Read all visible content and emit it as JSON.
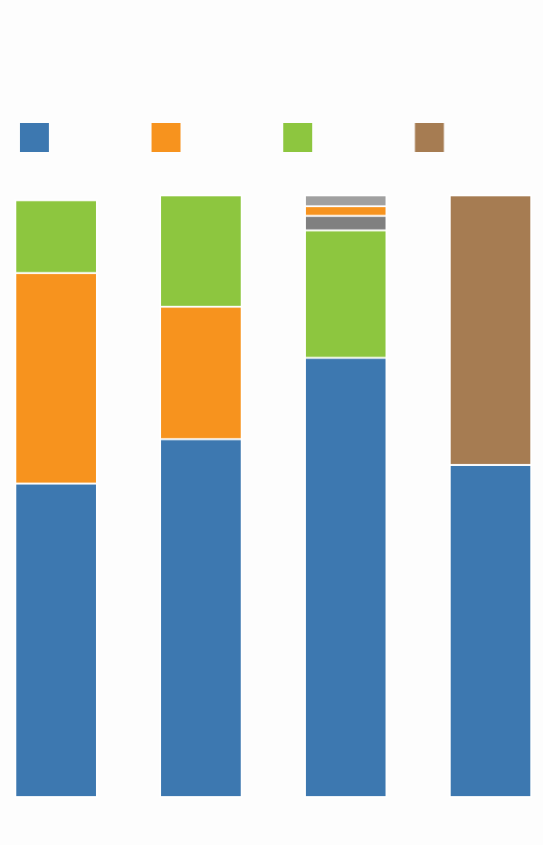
{
  "chart_data": {
    "type": "bar",
    "stacked": true,
    "orientation": "vertical",
    "categories": [
      "",
      "",
      "",
      ""
    ],
    "ylim": [
      0,
      100
    ],
    "grid": false,
    "legend_placement": "top",
    "legend": [
      {
        "color": "#3d78b0"
      },
      {
        "color": "#f7931e"
      },
      {
        "color": "#8dc63f"
      },
      {
        "color": "#a67c52"
      }
    ],
    "bars": [
      {
        "segments": [
          {
            "value": 52.1,
            "color": "#3d78b0"
          },
          {
            "value": 35.0,
            "color": "#f7931e"
          },
          {
            "value": 12.1,
            "color": "#8dc63f"
          }
        ]
      },
      {
        "segments": [
          {
            "value": 59.5,
            "color": "#3d78b0"
          },
          {
            "value": 22.0,
            "color": "#f7931e"
          },
          {
            "value": 18.5,
            "color": "#8dc63f"
          }
        ]
      },
      {
        "segments": [
          {
            "value": 73.0,
            "color": "#3d78b0"
          },
          {
            "value": 21.2,
            "color": "#8dc63f"
          },
          {
            "value": 2.4,
            "color": "#808080"
          },
          {
            "value": 1.6,
            "color": "#f7931e"
          },
          {
            "value": 1.8,
            "color": "#a0a0a0"
          }
        ]
      },
      {
        "segments": [
          {
            "value": 55.2,
            "color": "#3d78b0"
          },
          {
            "value": 44.8,
            "color": "#a67c52"
          }
        ]
      }
    ]
  }
}
